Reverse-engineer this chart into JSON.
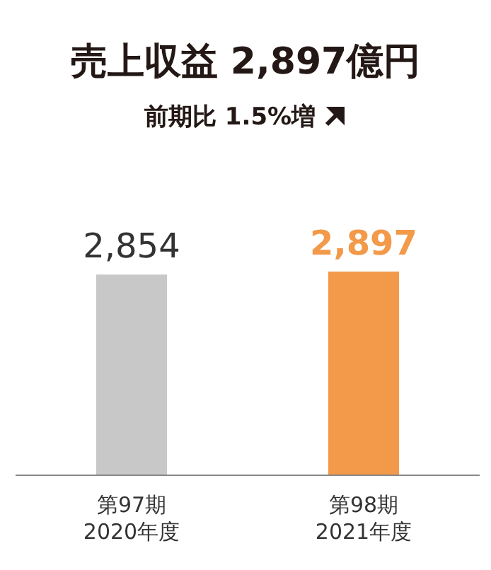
{
  "chart_data": {
    "type": "bar",
    "title": "売上収益 2,897億円",
    "subtitle": "前期比 1.5%増",
    "categories": [
      "第97期\n2020年度",
      "第98期\n2021年度"
    ],
    "values": [
      2854,
      2897
    ],
    "colors": [
      "#c8c8c8",
      "#f39a4a"
    ],
    "value_labels": [
      "2,854",
      "2,897"
    ]
  }
}
